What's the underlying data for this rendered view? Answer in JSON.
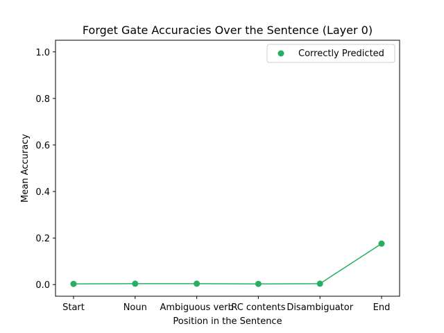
{
  "chart_data": {
    "type": "line",
    "title": "Forget Gate Accuracies Over the Sentence (Layer  0)",
    "xlabel": "Position in the Sentence",
    "ylabel": "Mean Accuracy",
    "categories": [
      "Start",
      "Noun",
      "Ambiguous verb",
      "RC contents",
      "Disambiguator",
      "End"
    ],
    "series": [
      {
        "name": "Correctly Predicted",
        "values": [
          0.003,
          0.004,
          0.004,
          0.003,
          0.004,
          0.176
        ],
        "color": "#27ae60"
      }
    ],
    "ylim": [
      -0.05,
      1.05
    ],
    "yticks": [
      0.0,
      0.2,
      0.4,
      0.6,
      0.8,
      1.0
    ],
    "ytick_labels": [
      "0.0",
      "0.2",
      "0.4",
      "0.6",
      "0.8",
      "1.0"
    ],
    "grid": false,
    "legend_position": "upper right"
  }
}
